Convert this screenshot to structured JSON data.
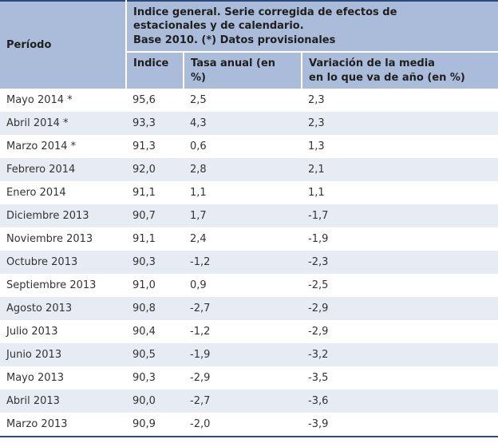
{
  "chart_data": {
    "type": "table",
    "corner_header": "Período",
    "group_header": "Indice general. Serie corregida de efectos de\nestacionales y de calendario.\nBase 2010. (*) Datos provisionales",
    "columns": [
      "Indice",
      "Tasa anual (en\n%)",
      "Variación de la media\nen lo que va de año (en %)"
    ],
    "rows": [
      [
        "Mayo 2014 *",
        "95,6",
        "2,5",
        "2,3"
      ],
      [
        "Abril 2014 *",
        "93,3",
        "4,3",
        "2,3"
      ],
      [
        "Marzo 2014 *",
        "91,3",
        "0,6",
        "1,3"
      ],
      [
        "Febrero 2014",
        "92,0",
        "2,8",
        "2,1"
      ],
      [
        "Enero 2014",
        "91,1",
        "1,1",
        "1,1"
      ],
      [
        "Diciembre 2013",
        "90,7",
        "1,7",
        "-1,7"
      ],
      [
        "Noviembre 2013",
        "91,1",
        "2,4",
        "-1,9"
      ],
      [
        "Octubre 2013",
        "90,3",
        "-1,2",
        "-2,3"
      ],
      [
        "Septiembre 2013",
        "91,0",
        "0,9",
        "-2,5"
      ],
      [
        "Agosto 2013",
        "90,8",
        "-2,7",
        "-2,9"
      ],
      [
        "Julio 2013",
        "90,4",
        "-1,2",
        "-2,9"
      ],
      [
        "Junio 2013",
        "90,5",
        "-1,9",
        "-3,2"
      ],
      [
        "Mayo 2013",
        "90,3",
        "-2,9",
        "-3,5"
      ],
      [
        "Abril 2013",
        "90,0",
        "-2,7",
        "-3,6"
      ],
      [
        "Marzo 2013",
        "90,9",
        "-2,0",
        "-3,9"
      ]
    ],
    "colors": {
      "header_background": "#aabcd9",
      "row_alt_background": "#e7ecf4",
      "border_dark_blue": "#2a4b7c",
      "body_text": "#333333"
    }
  }
}
